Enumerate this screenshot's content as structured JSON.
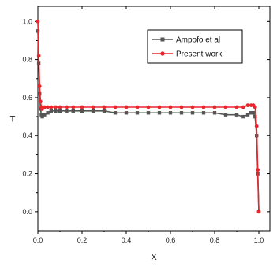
{
  "chart_data": {
    "type": "line",
    "xlabel": "X",
    "ylabel": "T",
    "xlim": [
      0,
      1.05
    ],
    "ylim": [
      -0.1,
      1.08
    ],
    "xticks": [
      "0.0",
      "0.2",
      "0.4",
      "0.6",
      "0.8",
      "1.0"
    ],
    "xtick_values": [
      0,
      0.2,
      0.4,
      0.6,
      0.8,
      1.0
    ],
    "yticks": [
      "0.0",
      "0.2",
      "0.4",
      "0.6",
      "0.8",
      "1.0"
    ],
    "ytick_values": [
      0,
      0.2,
      0.4,
      0.6,
      0.8,
      1.0
    ],
    "grid": false,
    "legend_position": "top-right",
    "series": [
      {
        "name": "Ampofo et al",
        "color": "#555555",
        "marker": "square",
        "x": [
          0.0,
          0.004,
          0.008,
          0.012,
          0.016,
          0.02,
          0.03,
          0.045,
          0.06,
          0.08,
          0.1,
          0.13,
          0.16,
          0.2,
          0.25,
          0.3,
          0.35,
          0.4,
          0.45,
          0.5,
          0.55,
          0.6,
          0.65,
          0.7,
          0.75,
          0.8,
          0.85,
          0.9,
          0.93,
          0.95,
          0.965,
          0.975,
          0.983,
          0.99,
          0.995,
          1.0
        ],
        "y": [
          0.95,
          0.78,
          0.62,
          0.54,
          0.51,
          0.5,
          0.51,
          0.52,
          0.53,
          0.53,
          0.53,
          0.53,
          0.53,
          0.53,
          0.53,
          0.53,
          0.52,
          0.52,
          0.52,
          0.52,
          0.52,
          0.52,
          0.52,
          0.52,
          0.52,
          0.52,
          0.51,
          0.51,
          0.5,
          0.51,
          0.52,
          0.52,
          0.5,
          0.4,
          0.2,
          0.0
        ]
      },
      {
        "name": "Present work",
        "color": "#e8262b",
        "marker": "circle",
        "x": [
          0.0,
          0.004,
          0.008,
          0.012,
          0.016,
          0.02,
          0.03,
          0.045,
          0.06,
          0.08,
          0.1,
          0.13,
          0.16,
          0.2,
          0.25,
          0.3,
          0.35,
          0.4,
          0.45,
          0.5,
          0.55,
          0.6,
          0.65,
          0.7,
          0.75,
          0.8,
          0.85,
          0.9,
          0.93,
          0.95,
          0.965,
          0.975,
          0.983,
          0.99,
          0.995,
          1.0
        ],
        "y": [
          1.0,
          0.82,
          0.66,
          0.58,
          0.55,
          0.54,
          0.55,
          0.55,
          0.55,
          0.55,
          0.55,
          0.55,
          0.55,
          0.55,
          0.55,
          0.55,
          0.55,
          0.55,
          0.55,
          0.55,
          0.55,
          0.55,
          0.55,
          0.55,
          0.55,
          0.55,
          0.55,
          0.55,
          0.55,
          0.56,
          0.56,
          0.56,
          0.55,
          0.45,
          0.22,
          0.0
        ]
      }
    ]
  }
}
